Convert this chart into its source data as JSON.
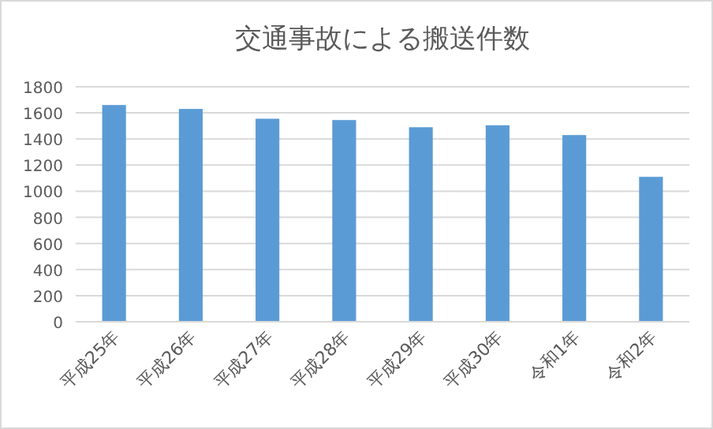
{
  "chart_data": {
    "type": "bar",
    "title": "交通事故による搬送件数",
    "categories": [
      "平成25年",
      "平成26年",
      "平成27年",
      "平成28年",
      "平成29年",
      "平成30年",
      "令和1年",
      "令和2年"
    ],
    "values": [
      1660,
      1630,
      1555,
      1545,
      1490,
      1505,
      1430,
      1110
    ],
    "color": "#5b9bd5",
    "ylim": [
      0,
      1800
    ],
    "yticks": [
      0,
      200,
      400,
      600,
      800,
      1000,
      1200,
      1400,
      1600,
      1800
    ],
    "grid": "y"
  }
}
